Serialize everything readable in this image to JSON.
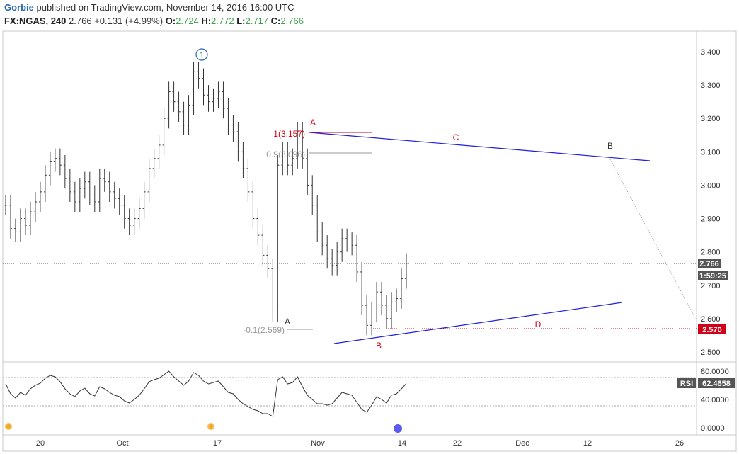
{
  "header": {
    "author": "Gorbie",
    "published_text": "published on TradingView.com, November 14, 2016 16:00 UTC",
    "symbol": "FX:NGAS, 240",
    "last": "2.766",
    "change": "+0.131 (+4.99%)",
    "o_label": "O:",
    "o_value": "2.724",
    "h_label": "H:",
    "h_value": "2.772",
    "l_label": "L:",
    "l_value": "2.717",
    "c_label": "C:",
    "c_value": "2.766"
  },
  "colors": {
    "price_bars": "#333333",
    "trendline": "#1f1fdb",
    "wave_red": "#d0021b",
    "fib_gray": "#999999",
    "rsi_line": "#333333",
    "wave1_circle": "#2a67b1",
    "dot_orange": "#f5a623",
    "dot_blue": "#5b5bf0"
  },
  "chart_data": [
    {
      "type": "line",
      "title": "FX:NGAS, 240",
      "ylim": [
        2.48,
        3.48
      ],
      "ytick_labels": [
        "3.400",
        "3.300",
        "3.200",
        "3.100",
        "3.000",
        "2.900",
        "2.800",
        "2.700",
        "2.600",
        "2.500"
      ],
      "xtick_labels": [
        "20",
        "Oct",
        "17",
        "Nov",
        "14",
        "22",
        "Dec",
        "12",
        "26"
      ],
      "series": [
        {
          "values": [
            2.94,
            2.87,
            2.86,
            2.9,
            2.88,
            2.92,
            2.95,
            2.98,
            3.03,
            3.07,
            3.08,
            3.06,
            3.02,
            2.98,
            2.95,
            2.99,
            3.01,
            2.97,
            2.95,
            3.02,
            3.01,
            2.98,
            2.96,
            2.94,
            2.9,
            2.88,
            2.9,
            2.93,
            2.98,
            3.05,
            3.08,
            3.12,
            3.2,
            3.28,
            3.25,
            3.22,
            3.18,
            3.24,
            3.34,
            3.32,
            3.27,
            3.25,
            3.26,
            3.28,
            3.23,
            3.18,
            3.16,
            3.1,
            3.05,
            2.98,
            2.9,
            2.85,
            2.79,
            2.75,
            2.62,
            3.06,
            3.1,
            3.06,
            3.08,
            3.16,
            3.08,
            3.0,
            2.94,
            2.86,
            2.82,
            2.78,
            2.76,
            2.8,
            2.84,
            2.83,
            2.82,
            2.74,
            2.64,
            2.58,
            2.62,
            2.68,
            2.64,
            2.6,
            2.65,
            2.66,
            2.72,
            2.766
          ]
        }
      ],
      "annotations": [
        {
          "text": "1",
          "kind": "wave-circle"
        },
        {
          "text": "A"
        },
        {
          "text": "1(3.157)"
        },
        {
          "text": "0.9(3.096)"
        },
        {
          "text": "A"
        },
        {
          "text": "-0.1(2.569)"
        },
        {
          "text": "B"
        },
        {
          "text": "C"
        },
        {
          "text": "B"
        },
        {
          "text": "D"
        }
      ],
      "price_tags": {
        "last_price": "2.766",
        "countdown": "1:59:25",
        "target": "2.570"
      },
      "grid": false
    },
    {
      "type": "line",
      "title": "RSI",
      "ylim": [
        -10,
        100
      ],
      "ytick_labels": [
        "80.0000",
        "40.0000",
        "0.0000"
      ],
      "value_tag_label": "RSI",
      "value_tag": "62.4658",
      "bands": [
        70,
        30
      ],
      "series": [
        {
          "values": [
            62,
            48,
            42,
            50,
            46,
            55,
            60,
            63,
            70,
            74,
            72,
            65,
            55,
            48,
            44,
            52,
            56,
            48,
            45,
            58,
            55,
            50,
            46,
            44,
            38,
            35,
            40,
            46,
            55,
            65,
            68,
            70,
            75,
            80,
            72,
            66,
            60,
            66,
            78,
            74,
            66,
            62,
            64,
            66,
            58,
            50,
            48,
            40,
            34,
            30,
            26,
            24,
            20,
            20,
            16,
            68,
            72,
            62,
            64,
            72,
            58,
            46,
            40,
            34,
            34,
            32,
            34,
            42,
            50,
            48,
            46,
            36,
            26,
            22,
            32,
            44,
            40,
            35,
            46,
            48,
            55,
            62.4658
          ]
        }
      ],
      "grid": false
    }
  ]
}
